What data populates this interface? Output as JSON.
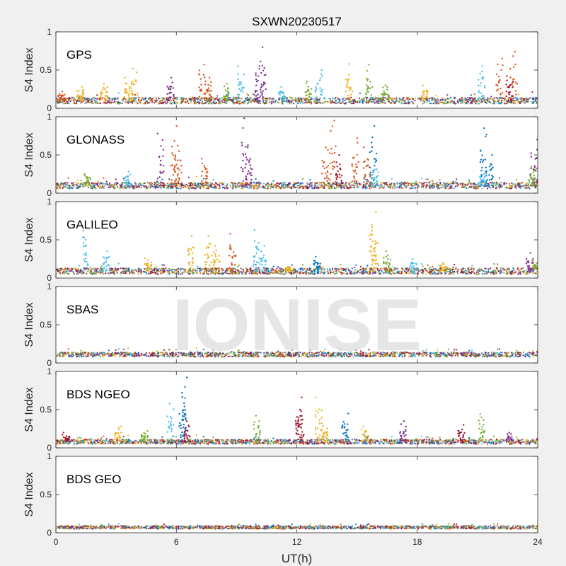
{
  "chart_data": {
    "type": "scatter",
    "title": "SXWN20230517",
    "xlabel": "UT(h)",
    "watermark": "IONISE",
    "xlim": [
      0,
      24
    ],
    "xticks": [
      0,
      6,
      12,
      18,
      24
    ],
    "xtick_labels": [
      "0",
      "6",
      "12",
      "18",
      "24"
    ],
    "series_colors": [
      "#0072BD",
      "#D95319",
      "#EDB120",
      "#7E2F8E",
      "#77AC30",
      "#4DBEEE",
      "#A2142F"
    ],
    "panels": [
      {
        "label": "GPS",
        "ylabel": "S4 Index",
        "ylim": [
          0,
          1
        ],
        "yticks": [
          0,
          0.5,
          1
        ],
        "ytick_labels": [
          "0",
          "0.5",
          "1"
        ],
        "baseline": 0.1,
        "noise": 0.04,
        "spikes": [
          {
            "x": 0.3,
            "y": 0.22,
            "c": 1
          },
          {
            "x": 1.2,
            "y": 0.28,
            "c": 2
          },
          {
            "x": 2.4,
            "y": 0.32,
            "c": 2
          },
          {
            "x": 3.5,
            "y": 0.4,
            "c": 2
          },
          {
            "x": 3.9,
            "y": 0.52,
            "c": 2
          },
          {
            "x": 5.7,
            "y": 0.4,
            "c": 3
          },
          {
            "x": 7.3,
            "y": 0.57,
            "c": 1
          },
          {
            "x": 7.6,
            "y": 0.4,
            "c": 1
          },
          {
            "x": 8.5,
            "y": 0.32,
            "c": 4
          },
          {
            "x": 9.2,
            "y": 0.55,
            "c": 5
          },
          {
            "x": 10.3,
            "y": 0.8,
            "c": 3
          },
          {
            "x": 10.1,
            "y": 0.55,
            "c": 3
          },
          {
            "x": 11.3,
            "y": 0.28,
            "c": 5
          },
          {
            "x": 12.6,
            "y": 0.35,
            "c": 4
          },
          {
            "x": 13.1,
            "y": 0.5,
            "c": 5
          },
          {
            "x": 14.6,
            "y": 0.58,
            "c": 2
          },
          {
            "x": 15.6,
            "y": 0.57,
            "c": 4
          },
          {
            "x": 16.4,
            "y": 0.3,
            "c": 4
          },
          {
            "x": 18.4,
            "y": 0.3,
            "c": 2
          },
          {
            "x": 21.2,
            "y": 0.55,
            "c": 5
          },
          {
            "x": 22.1,
            "y": 0.65,
            "c": 1
          },
          {
            "x": 22.8,
            "y": 0.74,
            "c": 1
          },
          {
            "x": 22.6,
            "y": 0.42,
            "c": 6
          }
        ]
      },
      {
        "label": "GLONASS",
        "ylabel": "S4 Index",
        "ylim": [
          0,
          1
        ],
        "yticks": [
          0,
          0.5,
          1
        ],
        "ytick_labels": [
          "0",
          "0.5",
          "1"
        ],
        "baseline": 0.1,
        "noise": 0.04,
        "spikes": [
          {
            "x": 1.6,
            "y": 0.25,
            "c": 4
          },
          {
            "x": 3.6,
            "y": 0.28,
            "c": 5
          },
          {
            "x": 5.2,
            "y": 0.78,
            "c": 3
          },
          {
            "x": 5.9,
            "y": 0.88,
            "c": 1
          },
          {
            "x": 6.1,
            "y": 0.55,
            "c": 1
          },
          {
            "x": 7.4,
            "y": 0.45,
            "c": 1
          },
          {
            "x": 9.4,
            "y": 0.98,
            "c": 3
          },
          {
            "x": 9.6,
            "y": 0.6,
            "c": 3
          },
          {
            "x": 13.4,
            "y": 0.6,
            "c": 1
          },
          {
            "x": 13.8,
            "y": 0.95,
            "c": 1
          },
          {
            "x": 14.1,
            "y": 0.5,
            "c": 6
          },
          {
            "x": 14.9,
            "y": 0.72,
            "c": 1
          },
          {
            "x": 15.5,
            "y": 0.6,
            "c": 1
          },
          {
            "x": 15.8,
            "y": 0.88,
            "c": 0
          },
          {
            "x": 15.9,
            "y": 0.4,
            "c": 5
          },
          {
            "x": 21.3,
            "y": 0.85,
            "c": 0
          },
          {
            "x": 21.6,
            "y": 0.5,
            "c": 0
          },
          {
            "x": 21.2,
            "y": 0.25,
            "c": 5
          },
          {
            "x": 23.8,
            "y": 0.7,
            "c": 3
          },
          {
            "x": 23.7,
            "y": 0.35,
            "c": 4
          }
        ]
      },
      {
        "label": "GALILEO",
        "ylabel": "S4 Index",
        "ylim": [
          0,
          1
        ],
        "yticks": [
          0,
          0.5,
          1
        ],
        "ytick_labels": [
          "0",
          "0.5",
          "1"
        ],
        "baseline": 0.09,
        "noise": 0.04,
        "spikes": [
          {
            "x": 1.5,
            "y": 0.62,
            "c": 5
          },
          {
            "x": 2.5,
            "y": 0.35,
            "c": 5
          },
          {
            "x": 4.6,
            "y": 0.26,
            "c": 2
          },
          {
            "x": 6.7,
            "y": 0.55,
            "c": 2
          },
          {
            "x": 7.6,
            "y": 0.55,
            "c": 2
          },
          {
            "x": 8.0,
            "y": 0.42,
            "c": 2
          },
          {
            "x": 8.8,
            "y": 0.58,
            "c": 1
          },
          {
            "x": 10.0,
            "y": 0.63,
            "c": 5
          },
          {
            "x": 10.3,
            "y": 0.42,
            "c": 5
          },
          {
            "x": 11.6,
            "y": 0.15,
            "c": 2
          },
          {
            "x": 13.0,
            "y": 0.28,
            "c": 0
          },
          {
            "x": 15.8,
            "y": 0.86,
            "c": 2
          },
          {
            "x": 15.9,
            "y": 0.62,
            "c": 2
          },
          {
            "x": 16.5,
            "y": 0.35,
            "c": 4
          },
          {
            "x": 17.8,
            "y": 0.25,
            "c": 5
          },
          {
            "x": 19.3,
            "y": 0.2,
            "c": 2
          },
          {
            "x": 23.6,
            "y": 0.33,
            "c": 3
          },
          {
            "x": 23.9,
            "y": 0.25,
            "c": 4
          }
        ]
      },
      {
        "label": "SBAS",
        "ylabel": "S4 Index",
        "ylim": [
          0,
          1
        ],
        "yticks": [
          0,
          0.5,
          1
        ],
        "ytick_labels": [
          "0",
          "0.5",
          "1"
        ],
        "baseline": 0.11,
        "noise": 0.03,
        "spikes": []
      },
      {
        "label": "BDS NGEO",
        "ylabel": "S4 Index",
        "ylim": [
          0,
          1
        ],
        "yticks": [
          0,
          0.5,
          1
        ],
        "ytick_labels": [
          "0",
          "0.5",
          "1"
        ],
        "baseline": 0.08,
        "noise": 0.03,
        "spikes": [
          {
            "x": 0.5,
            "y": 0.2,
            "c": 6
          },
          {
            "x": 3.1,
            "y": 0.28,
            "c": 2
          },
          {
            "x": 4.4,
            "y": 0.22,
            "c": 4
          },
          {
            "x": 5.7,
            "y": 0.58,
            "c": 5
          },
          {
            "x": 6.4,
            "y": 0.92,
            "c": 0
          },
          {
            "x": 6.3,
            "y": 0.72,
            "c": 0
          },
          {
            "x": 6.5,
            "y": 0.35,
            "c": 6
          },
          {
            "x": 10.0,
            "y": 0.42,
            "c": 4
          },
          {
            "x": 12.1,
            "y": 0.66,
            "c": 6
          },
          {
            "x": 12.2,
            "y": 0.5,
            "c": 6
          },
          {
            "x": 13.1,
            "y": 0.66,
            "c": 2
          },
          {
            "x": 13.4,
            "y": 0.32,
            "c": 2
          },
          {
            "x": 14.4,
            "y": 0.45,
            "c": 0
          },
          {
            "x": 15.4,
            "y": 0.28,
            "c": 2
          },
          {
            "x": 17.3,
            "y": 0.35,
            "c": 3
          },
          {
            "x": 20.2,
            "y": 0.3,
            "c": 6
          },
          {
            "x": 21.2,
            "y": 0.44,
            "c": 4
          },
          {
            "x": 22.6,
            "y": 0.2,
            "c": 3
          }
        ]
      },
      {
        "label": "BDS GEO",
        "ylabel": "S4 Index",
        "ylim": [
          0,
          1
        ],
        "yticks": [
          0,
          0.5,
          1
        ],
        "ytick_labels": [
          "0",
          "0.5",
          "1"
        ],
        "baseline": 0.07,
        "noise": 0.02,
        "spikes": []
      }
    ]
  }
}
